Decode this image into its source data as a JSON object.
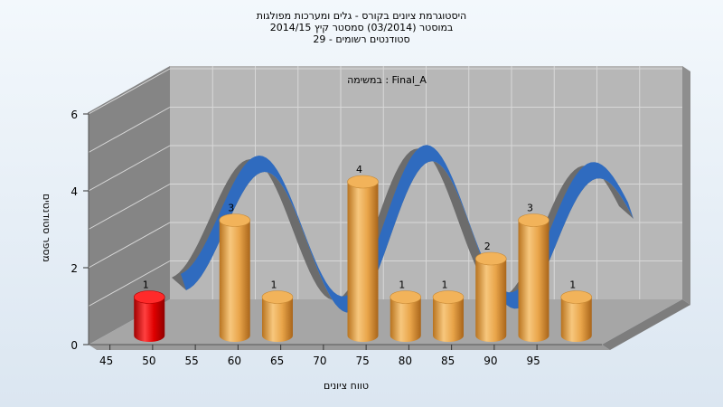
{
  "chart_data": {
    "type": "bar",
    "title_lines": [
      "היסטוגרמת ציונים בקורס - גלים ומערכות מפולגות",
      "במוסטר  (03/2014)  סמסטר קיץ 2014/15",
      "סטודנטים רשומים - 29"
    ],
    "annotation": "במשימה : Final_A",
    "xlabel": "טווח ציונים",
    "ylabel": "מספר סטודנטים",
    "x_ticks": [
      "45",
      "50",
      "55",
      "60",
      "65",
      "70",
      "75",
      "80",
      "85",
      "90",
      "95"
    ],
    "y_ticks": [
      "0",
      "2",
      "4",
      "6"
    ],
    "ylim": [
      0,
      6
    ],
    "bars": [
      {
        "x": 45,
        "value": 1,
        "label": "1"
      },
      {
        "x": 55,
        "value": 3,
        "label": "3"
      },
      {
        "x": 60,
        "value": 1,
        "label": "1"
      },
      {
        "x": 70,
        "value": 4,
        "label": "4"
      },
      {
        "x": 75,
        "value": 1,
        "label": "1"
      },
      {
        "x": 80,
        "value": 1,
        "label": "1"
      },
      {
        "x": 85,
        "value": 2,
        "label": "2"
      },
      {
        "x": 90,
        "value": 3,
        "label": "3"
      },
      {
        "x": 95,
        "value": 1,
        "label": "1"
      }
    ],
    "curve": {
      "type": "ribbon",
      "color": "#2f6bbf"
    },
    "highlight_color": "#e00000",
    "bar_color": "#e8a64a",
    "grid": true,
    "legend": "none"
  }
}
